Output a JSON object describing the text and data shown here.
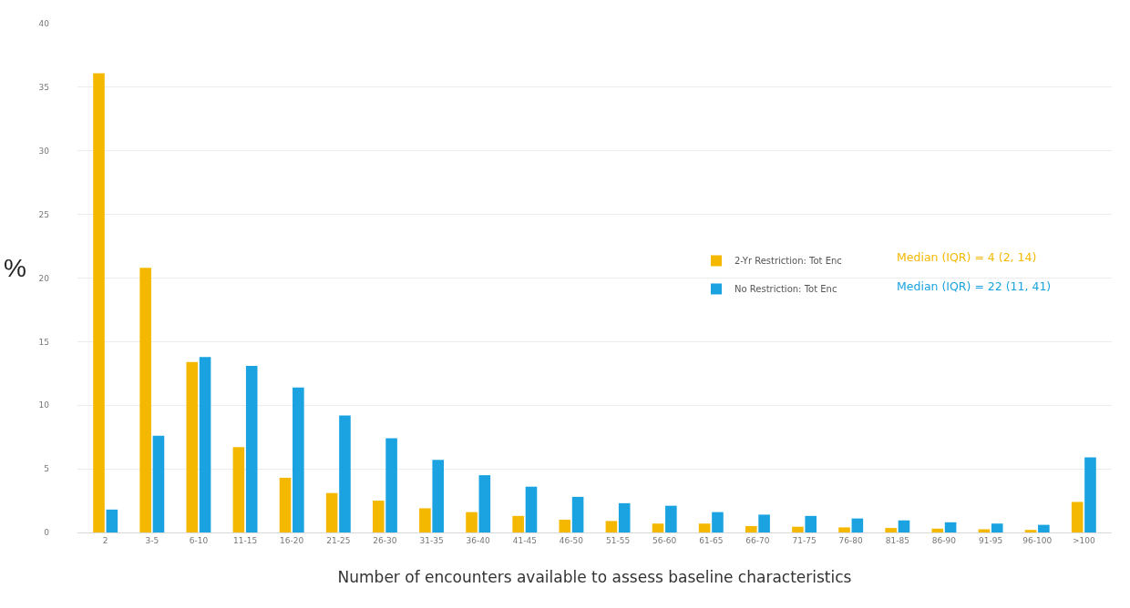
{
  "chart_data": {
    "type": "bar",
    "xlabel": "Number of encounters available to assess baseline characteristics",
    "ylabel": "%",
    "categories": [
      "2",
      "3-5",
      "6-10",
      "11-15",
      "16-20",
      "21-25",
      "26-30",
      "31-35",
      "36-40",
      "41-45",
      "46-50",
      "51-55",
      "56-60",
      "61-65",
      "66-70",
      "71-75",
      "76-80",
      "81-85",
      "86-90",
      "91-95",
      "96-100",
      ">100"
    ],
    "series": [
      {
        "name": "2-Yr Restriction: Tot Enc",
        "color": "#f5b800",
        "values": [
          36.1,
          20.8,
          13.4,
          6.7,
          4.3,
          3.1,
          2.5,
          1.9,
          1.6,
          1.3,
          1.0,
          0.9,
          0.7,
          0.7,
          0.5,
          0.45,
          0.4,
          0.35,
          0.3,
          0.25,
          0.2,
          2.4
        ]
      },
      {
        "name": "No Restriction: Tot Enc",
        "color": "#1aa3e0",
        "values": [
          1.8,
          7.6,
          13.8,
          13.1,
          11.4,
          9.2,
          7.4,
          5.7,
          4.5,
          3.6,
          2.8,
          2.3,
          2.1,
          1.6,
          1.4,
          1.3,
          1.1,
          0.95,
          0.8,
          0.7,
          0.6,
          5.9
        ]
      }
    ],
    "annotations": [
      "Median (IQR) = 4 (2, 14)",
      "Median (IQR) = 22 (11, 41)"
    ],
    "ylim": [
      0,
      40
    ],
    "yticks": [
      0,
      5,
      10,
      15,
      20,
      25,
      30,
      35,
      40
    ],
    "grid": "y",
    "legend": "right"
  }
}
